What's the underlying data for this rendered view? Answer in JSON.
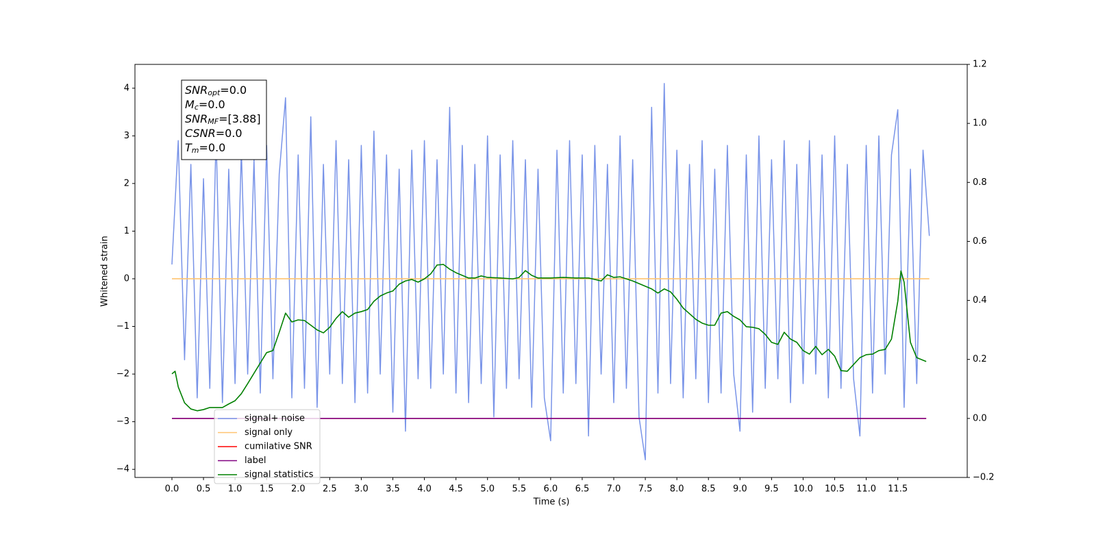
{
  "chart_data": {
    "type": "line",
    "xlabel": "Time (s)",
    "ylabel": "Whitened strain",
    "xlim": [
      -0.586,
      12.6
    ],
    "ylim": [
      -4.17,
      4.5
    ],
    "y2lim": [
      -0.2,
      1.2
    ],
    "xticks": [
      {
        "value": 0,
        "label": "0.0"
      },
      0.5,
      {
        "value": 1,
        "label": "1.0"
      },
      1.5,
      {
        "value": 2,
        "label": "2.0"
      },
      2.5,
      {
        "value": 3,
        "label": "3.0"
      },
      3.5,
      {
        "value": 4,
        "label": "4.0"
      },
      4.5,
      {
        "value": 5,
        "label": "5.0"
      },
      5.5,
      {
        "value": 6,
        "label": "6.0"
      },
      6.5,
      {
        "value": 7,
        "label": "7.0"
      },
      7.5,
      {
        "value": 8,
        "label": "8.0"
      },
      8.5,
      {
        "value": 9,
        "label": "9.0"
      },
      9.5,
      {
        "value": 10,
        "label": "10.0"
      },
      10.5,
      {
        "value": 11,
        "label": "11.0"
      },
      11.5
    ],
    "yticks": [
      {
        "value": -4,
        "label": "−4"
      },
      {
        "value": -3,
        "label": "−3"
      },
      {
        "value": -2,
        "label": "−2"
      },
      {
        "value": -1,
        "label": "−1"
      },
      0,
      1,
      2,
      3,
      4
    ],
    "y2ticks": [
      {
        "value": -0.2,
        "label": "−0.2"
      },
      {
        "value": 0,
        "label": "0.0"
      },
      0.2,
      0.4,
      0.6,
      0.8,
      {
        "value": 1,
        "label": "1.0"
      },
      1.2
    ],
    "legend": "lower left",
    "text_box": [
      {
        "symbol": "SNR",
        "sub": "opt",
        "rest": "=0.0"
      },
      {
        "symbol": "M",
        "sub": "c",
        "rest": "=0.0"
      },
      {
        "symbol": "SNR",
        "sub": "MF",
        "rest": "=[3.88]"
      },
      {
        "symbol": "CSNR",
        "rest": "=0.0"
      },
      {
        "symbol": "T",
        "sub": "m",
        "rest": "=0.0"
      }
    ],
    "series": [
      {
        "name": "signal+ noise",
        "color": "#7893e8",
        "x": [
          0,
          0.1,
          0.2,
          0.3,
          0.4,
          0.5,
          0.6,
          0.7,
          0.8,
          0.9,
          1,
          1.1,
          1.2,
          1.3,
          1.4,
          1.5,
          1.6,
          1.7,
          1.8,
          1.9,
          2,
          2.1,
          2.2,
          2.3,
          2.4,
          2.5,
          2.6,
          2.7,
          2.8,
          2.9,
          3,
          3.1,
          3.2,
          3.3,
          3.4,
          3.5,
          3.6,
          3.7,
          3.8,
          3.9,
          4,
          4.1,
          4.2,
          4.3,
          4.4,
          4.5,
          4.6,
          4.7,
          4.8,
          4.9,
          5,
          5.1,
          5.2,
          5.3,
          5.4,
          5.5,
          5.6,
          5.7,
          5.8,
          5.9,
          6,
          6.1,
          6.2,
          6.3,
          6.4,
          6.5,
          6.6,
          6.7,
          6.8,
          6.9,
          7,
          7.1,
          7.2,
          7.3,
          7.4,
          7.5,
          7.6,
          7.7,
          7.8,
          7.9,
          8,
          8.1,
          8.2,
          8.3,
          8.4,
          8.5,
          8.6,
          8.7,
          8.8,
          8.9,
          9,
          9.1,
          9.2,
          9.3,
          9.4,
          9.5,
          9.6,
          9.7,
          9.8,
          9.9,
          10,
          10.1,
          10.2,
          10.3,
          10.4,
          10.5,
          10.6,
          10.7,
          10.8,
          10.9,
          11,
          11.1,
          11.2,
          11.3,
          11.4,
          11.5,
          11.6,
          11.7,
          11.8,
          11.9,
          12
        ],
        "values": [
          0.3,
          2.9,
          -1.7,
          2.4,
          -2.5,
          2.1,
          -2.3,
          3.0,
          -2.6,
          2.3,
          -2.2,
          2.7,
          -2.0,
          2.5,
          -2.4,
          2.8,
          -2.1,
          2.2,
          3.8,
          -2.5,
          2.6,
          -2.3,
          3.4,
          -2.7,
          2.4,
          -2.0,
          2.9,
          -2.2,
          2.5,
          -2.6,
          2.8,
          -2.4,
          3.1,
          -2.0,
          2.6,
          -2.8,
          2.3,
          -3.2,
          2.7,
          -2.1,
          2.9,
          -2.3,
          2.5,
          -2.0,
          3.6,
          -2.4,
          2.8,
          -2.6,
          2.4,
          -2.2,
          3.0,
          -2.9,
          2.6,
          -2.3,
          2.9,
          -2.1,
          2.5,
          -2.7,
          2.3,
          -2.5,
          -3.4,
          2.7,
          -2.4,
          2.9,
          -2.2,
          2.6,
          -3.3,
          2.8,
          -2.0,
          2.4,
          -2.6,
          3.0,
          -2.3,
          2.5,
          -2.9,
          -3.8,
          3.6,
          -2.4,
          4.1,
          -2.2,
          2.7,
          -2.5,
          2.4,
          -2.1,
          2.9,
          -2.6,
          2.3,
          -2.4,
          2.8,
          -2.0,
          -3.2,
          2.6,
          -2.8,
          3.0,
          -2.3,
          2.5,
          -2.1,
          2.9,
          -2.6,
          2.4,
          -2.2,
          2.9,
          -2.0,
          2.6,
          -2.5,
          3.0,
          -2.3,
          2.4,
          -2.1,
          -3.3,
          2.8,
          -2.4,
          3.0,
          -2.0,
          2.6,
          3.55,
          -2.7,
          2.3,
          -2.2,
          2.7,
          0.9
        ]
      },
      {
        "name": "signal only",
        "color": "#ffc470",
        "x": [
          0,
          12
        ],
        "values": [
          0,
          0
        ]
      },
      {
        "name": "cumilative SNR",
        "color": "red",
        "axis": "y2",
        "x": [
          0,
          11.95
        ],
        "values": [
          0,
          0
        ]
      },
      {
        "name": "label",
        "color": "purple",
        "axis": "y2",
        "x": [
          0,
          11.95
        ],
        "values": [
          0,
          0
        ]
      },
      {
        "name": "signal statistics",
        "color": "green",
        "axis": "y2",
        "x": [
          0,
          0.05,
          0.1,
          0.2,
          0.3,
          0.4,
          0.5,
          0.6,
          0.8,
          0.9,
          1,
          1.1,
          1.2,
          1.3,
          1.4,
          1.5,
          1.6,
          1.7,
          1.8,
          1.9,
          2,
          2.1,
          2.2,
          2.3,
          2.4,
          2.5,
          2.6,
          2.7,
          2.8,
          2.9,
          3,
          3.1,
          3.2,
          3.3,
          3.4,
          3.5,
          3.6,
          3.7,
          3.8,
          3.9,
          4,
          4.1,
          4.2,
          4.3,
          4.4,
          4.5,
          4.6,
          4.7,
          4.8,
          4.9,
          5,
          5.2,
          5.4,
          5.5,
          5.6,
          5.7,
          5.8,
          6,
          6.2,
          6.4,
          6.6,
          6.8,
          6.9,
          7,
          7.1,
          7.2,
          7.3,
          7.4,
          7.5,
          7.6,
          7.7,
          7.8,
          7.9,
          8,
          8.1,
          8.2,
          8.3,
          8.4,
          8.5,
          8.6,
          8.7,
          8.8,
          8.9,
          9,
          9.1,
          9.2,
          9.3,
          9.4,
          9.5,
          9.6,
          9.7,
          9.8,
          9.9,
          10,
          10.1,
          10.2,
          10.3,
          10.4,
          10.5,
          10.6,
          10.7,
          10.8,
          10.9,
          11,
          11.1,
          11.2,
          11.3,
          11.4,
          11.5,
          11.55,
          11.6,
          11.7,
          11.8,
          11.95
        ],
        "values": [
          0.151,
          0.16,
          0.107,
          0.053,
          0.032,
          0.026,
          0.03,
          0.037,
          0.037,
          0.049,
          0.06,
          0.084,
          0.118,
          0.153,
          0.188,
          0.223,
          0.23,
          0.292,
          0.357,
          0.327,
          0.334,
          0.332,
          0.316,
          0.3,
          0.29,
          0.309,
          0.339,
          0.362,
          0.343,
          0.357,
          0.362,
          0.369,
          0.397,
          0.415,
          0.425,
          0.432,
          0.455,
          0.466,
          0.471,
          0.462,
          0.473,
          0.49,
          0.52,
          0.522,
          0.506,
          0.494,
          0.485,
          0.476,
          0.476,
          0.483,
          0.478,
          0.476,
          0.473,
          0.478,
          0.501,
          0.485,
          0.476,
          0.476,
          0.478,
          0.476,
          0.476,
          0.466,
          0.487,
          0.478,
          0.48,
          0.473,
          0.466,
          0.457,
          0.448,
          0.439,
          0.425,
          0.439,
          0.429,
          0.404,
          0.374,
          0.355,
          0.336,
          0.323,
          0.316,
          0.316,
          0.357,
          0.362,
          0.346,
          0.334,
          0.311,
          0.309,
          0.304,
          0.285,
          0.258,
          0.251,
          0.292,
          0.269,
          0.258,
          0.23,
          0.218,
          0.244,
          0.216,
          0.234,
          0.211,
          0.162,
          0.16,
          0.183,
          0.206,
          0.216,
          0.218,
          0.23,
          0.234,
          0.269,
          0.397,
          0.5,
          0.462,
          0.258,
          0.206,
          0.193
        ]
      }
    ]
  }
}
